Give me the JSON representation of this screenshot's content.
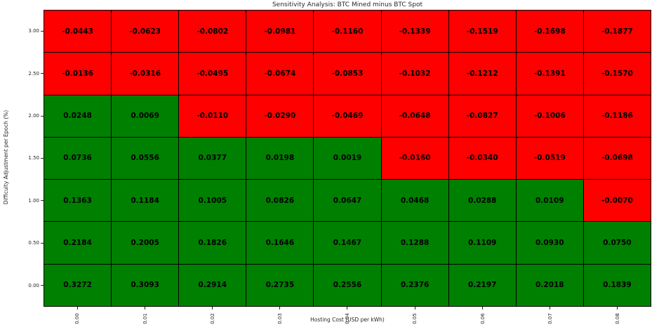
{
  "title": "Sensitivity Analysis: BTC Mined minus BTC Spot",
  "chart_data": {
    "type": "heatmap",
    "title": "Sensitivity Analysis: BTC Mined minus BTC Spot",
    "xlabel": "Hosting Cost (USD per kWh)",
    "ylabel": "Difficulty Adjustment per Epoch (%)",
    "x_categories": [
      "0.00",
      "0.01",
      "0.02",
      "0.03",
      "0.04",
      "0.05",
      "0.06",
      "0.07",
      "0.08"
    ],
    "y_categories": [
      "3.00",
      "2.50",
      "2.00",
      "1.50",
      "1.00",
      "0.50",
      "0.00"
    ],
    "values": [
      [
        -0.0443,
        -0.0623,
        -0.0802,
        -0.0981,
        -0.116,
        -0.1339,
        -0.1519,
        -0.1698,
        -0.1877
      ],
      [
        -0.0136,
        -0.0316,
        -0.0495,
        -0.0674,
        -0.0853,
        -0.1032,
        -0.1212,
        -0.1391,
        -0.157
      ],
      [
        0.0248,
        0.0069,
        -0.011,
        -0.029,
        -0.0469,
        -0.0648,
        -0.0827,
        -0.1006,
        -0.1186
      ],
      [
        0.0736,
        0.0556,
        0.0377,
        0.0198,
        0.0019,
        -0.016,
        -0.034,
        -0.0519,
        -0.0698
      ],
      [
        0.1363,
        0.1184,
        0.1005,
        0.0826,
        0.0647,
        0.0468,
        0.0288,
        0.0109,
        -0.007
      ],
      [
        0.2184,
        0.2005,
        0.1826,
        0.1646,
        0.1467,
        0.1288,
        0.1109,
        0.093,
        0.075
      ],
      [
        0.3272,
        0.3093,
        0.2914,
        0.2735,
        0.2556,
        0.2376,
        0.2197,
        0.2018,
        0.1839
      ]
    ],
    "value_format_decimals": 4,
    "colors": {
      "positive": "#008000",
      "negative": "#ff0000",
      "cell_text": "#000000"
    },
    "color_rule": "green if value >= 0 else red",
    "legend": "none",
    "grid_lines": "black cell borders"
  }
}
